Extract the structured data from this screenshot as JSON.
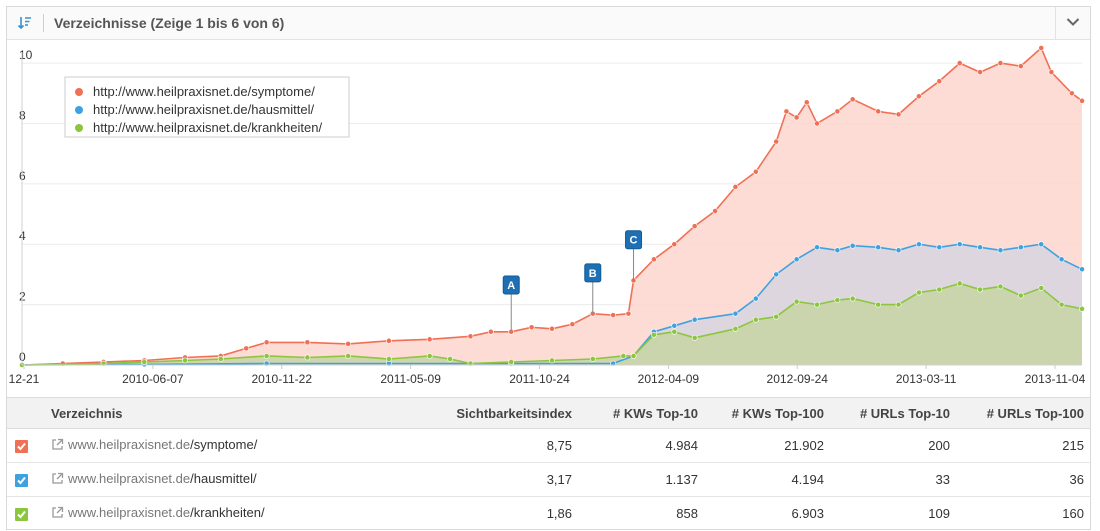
{
  "header": {
    "title": "Verzeichnisse (Zeige 1 bis 6 von 6)"
  },
  "chart_data": {
    "type": "area",
    "y_ticks": [
      0,
      2,
      4,
      6,
      8,
      10
    ],
    "ylim": [
      0,
      10.5
    ],
    "x_ticks": [
      "12-21",
      "2010-06-07",
      "2010-11-22",
      "2011-05-09",
      "2011-10-24",
      "2012-04-09",
      "2012-09-24",
      "2013-03-11",
      "2013-11-04"
    ],
    "x_range": [
      "2009-12-21",
      "2013-12-16"
    ],
    "legend_position": "top-left",
    "series": [
      {
        "name": "http://www.heilpraxisnet.de/symptome/",
        "color": "#f07055",
        "fill": "#fcd6ce",
        "points": [
          [
            "2009-12-21",
            0
          ],
          [
            "2010-02-15",
            0.05
          ],
          [
            "2010-04-12",
            0.1
          ],
          [
            "2010-06-07",
            0.15
          ],
          [
            "2010-08-02",
            0.25
          ],
          [
            "2010-09-20",
            0.3
          ],
          [
            "2010-10-25",
            0.55
          ],
          [
            "2010-11-22",
            0.75
          ],
          [
            "2011-01-17",
            0.75
          ],
          [
            "2011-03-14",
            0.7
          ],
          [
            "2011-05-09",
            0.8
          ],
          [
            "2011-07-04",
            0.85
          ],
          [
            "2011-08-29",
            0.95
          ],
          [
            "2011-09-26",
            1.1
          ],
          [
            "2011-10-24",
            1.1
          ],
          [
            "2011-11-21",
            1.25
          ],
          [
            "2011-12-19",
            1.2
          ],
          [
            "2012-01-16",
            1.35
          ],
          [
            "2012-02-13",
            1.7
          ],
          [
            "2012-03-12",
            1.65
          ],
          [
            "2012-04-02",
            1.7
          ],
          [
            "2012-04-09",
            2.8
          ],
          [
            "2012-05-07",
            3.5
          ],
          [
            "2012-06-04",
            4.0
          ],
          [
            "2012-07-02",
            4.6
          ],
          [
            "2012-07-30",
            5.1
          ],
          [
            "2012-08-27",
            5.9
          ],
          [
            "2012-09-24",
            6.4
          ],
          [
            "2012-10-22",
            7.4
          ],
          [
            "2012-11-05",
            8.4
          ],
          [
            "2012-11-19",
            8.2
          ],
          [
            "2012-12-03",
            8.7
          ],
          [
            "2012-12-17",
            8.0
          ],
          [
            "2013-01-14",
            8.4
          ],
          [
            "2013-02-04",
            8.8
          ],
          [
            "2013-03-11",
            8.4
          ],
          [
            "2013-04-08",
            8.3
          ],
          [
            "2013-05-06",
            8.9
          ],
          [
            "2013-06-03",
            9.4
          ],
          [
            "2013-07-01",
            10.0
          ],
          [
            "2013-07-29",
            9.7
          ],
          [
            "2013-08-26",
            10.0
          ],
          [
            "2013-09-23",
            9.9
          ],
          [
            "2013-10-21",
            10.5
          ],
          [
            "2013-11-04",
            9.7
          ],
          [
            "2013-12-02",
            9.0
          ],
          [
            "2013-12-16",
            8.75
          ]
        ]
      },
      {
        "name": "http://www.heilpraxisnet.de/hausmittel/",
        "color": "#3fa2e0",
        "fill": "#d7d5e0",
        "points": [
          [
            "2009-12-21",
            0
          ],
          [
            "2010-06-07",
            0.02
          ],
          [
            "2010-11-22",
            0.05
          ],
          [
            "2011-05-09",
            0.05
          ],
          [
            "2011-10-24",
            0.05
          ],
          [
            "2012-03-12",
            0.05
          ],
          [
            "2012-04-09",
            0.3
          ],
          [
            "2012-05-07",
            1.1
          ],
          [
            "2012-06-04",
            1.3
          ],
          [
            "2012-07-02",
            1.5
          ],
          [
            "2012-08-27",
            1.7
          ],
          [
            "2012-09-24",
            2.2
          ],
          [
            "2012-10-22",
            3.0
          ],
          [
            "2012-11-19",
            3.5
          ],
          [
            "2012-12-17",
            3.9
          ],
          [
            "2013-01-14",
            3.8
          ],
          [
            "2013-02-04",
            3.95
          ],
          [
            "2013-03-11",
            3.9
          ],
          [
            "2013-04-08",
            3.8
          ],
          [
            "2013-05-06",
            4.0
          ],
          [
            "2013-06-03",
            3.9
          ],
          [
            "2013-07-01",
            4.0
          ],
          [
            "2013-07-29",
            3.9
          ],
          [
            "2013-08-26",
            3.8
          ],
          [
            "2013-09-23",
            3.9
          ],
          [
            "2013-10-21",
            4.0
          ],
          [
            "2013-11-18",
            3.5
          ],
          [
            "2013-12-16",
            3.17
          ]
        ]
      },
      {
        "name": "http://www.heilpraxisnet.de/krankheiten/",
        "color": "#8cc63e",
        "fill": "#c7d5a6",
        "points": [
          [
            "2009-12-21",
            0
          ],
          [
            "2010-04-12",
            0.05
          ],
          [
            "2010-06-07",
            0.1
          ],
          [
            "2010-08-02",
            0.15
          ],
          [
            "2010-09-20",
            0.2
          ],
          [
            "2010-11-22",
            0.3
          ],
          [
            "2011-01-17",
            0.25
          ],
          [
            "2011-03-14",
            0.3
          ],
          [
            "2011-05-09",
            0.2
          ],
          [
            "2011-07-04",
            0.3
          ],
          [
            "2011-08-01",
            0.2
          ],
          [
            "2011-08-29",
            0.05
          ],
          [
            "2011-10-24",
            0.1
          ],
          [
            "2011-12-19",
            0.15
          ],
          [
            "2012-02-13",
            0.2
          ],
          [
            "2012-03-26",
            0.3
          ],
          [
            "2012-04-09",
            0.3
          ],
          [
            "2012-05-07",
            1.0
          ],
          [
            "2012-06-04",
            1.1
          ],
          [
            "2012-07-02",
            0.9
          ],
          [
            "2012-08-27",
            1.2
          ],
          [
            "2012-09-24",
            1.5
          ],
          [
            "2012-10-22",
            1.6
          ],
          [
            "2012-11-19",
            2.1
          ],
          [
            "2012-12-17",
            2.0
          ],
          [
            "2013-01-14",
            2.15
          ],
          [
            "2013-02-04",
            2.2
          ],
          [
            "2013-03-11",
            2.0
          ],
          [
            "2013-04-08",
            2.0
          ],
          [
            "2013-05-06",
            2.4
          ],
          [
            "2013-06-03",
            2.5
          ],
          [
            "2013-07-01",
            2.7
          ],
          [
            "2013-07-29",
            2.5
          ],
          [
            "2013-08-26",
            2.6
          ],
          [
            "2013-09-23",
            2.3
          ],
          [
            "2013-10-21",
            2.55
          ],
          [
            "2013-11-18",
            2.0
          ],
          [
            "2013-12-16",
            1.86
          ]
        ]
      }
    ],
    "annotations": [
      {
        "label": "A",
        "date": "2011-10-24",
        "value": 1.15,
        "flag_value": 2.65
      },
      {
        "label": "B",
        "date": "2012-02-13",
        "value": 1.7,
        "flag_value": 3.05
      },
      {
        "label": "C",
        "date": "2012-04-09",
        "value": 2.8,
        "flag_value": 4.15
      }
    ]
  },
  "table": {
    "headers": {
      "verzeichnis": "Verzeichnis",
      "sichtbarkeit": "Sichtbarkeitsindex",
      "kw10": "# KWs Top-10",
      "kw100": "# KWs Top-100",
      "url10": "# URLs Top-10",
      "url100": "# URLs Top-100"
    },
    "rows": [
      {
        "domain": "www.heilpraxisnet.de",
        "path": "/symptome/",
        "checkbox_color": "#f07055",
        "sichtbarkeit": "8,75",
        "kw10": "4.984",
        "kw100": "21.902",
        "url10": "200",
        "url100": "215"
      },
      {
        "domain": "www.heilpraxisnet.de",
        "path": "/hausmittel/",
        "checkbox_color": "#3fa2e0",
        "sichtbarkeit": "3,17",
        "kw10": "1.137",
        "kw100": "4.194",
        "url10": "33",
        "url100": "36"
      },
      {
        "domain": "www.heilpraxisnet.de",
        "path": "/krankheiten/",
        "checkbox_color": "#8cc63e",
        "sichtbarkeit": "1,86",
        "kw10": "858",
        "kw100": "6.903",
        "url10": "109",
        "url100": "160"
      }
    ]
  }
}
